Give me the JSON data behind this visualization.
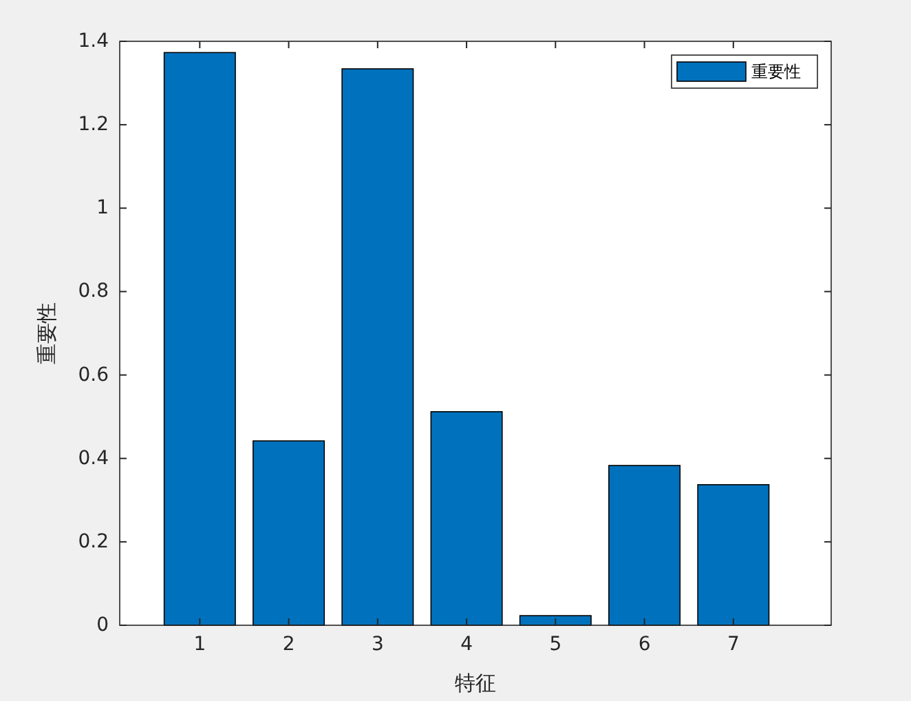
{
  "chart_data": {
    "type": "bar",
    "xlabel": "特征",
    "ylabel": "重要性",
    "categories": [
      "1",
      "2",
      "3",
      "4",
      "5",
      "6",
      "7"
    ],
    "series": [
      {
        "name": "重要性",
        "color": "#0072bd",
        "values": [
          1.373,
          0.442,
          1.334,
          0.512,
          0.023,
          0.383,
          0.337
        ]
      }
    ],
    "ylim": [
      0,
      1.4
    ],
    "yticks": [
      0,
      0.2,
      0.4,
      0.6,
      0.8,
      1,
      1.2,
      1.4
    ],
    "grid": false,
    "legend": "top right"
  }
}
